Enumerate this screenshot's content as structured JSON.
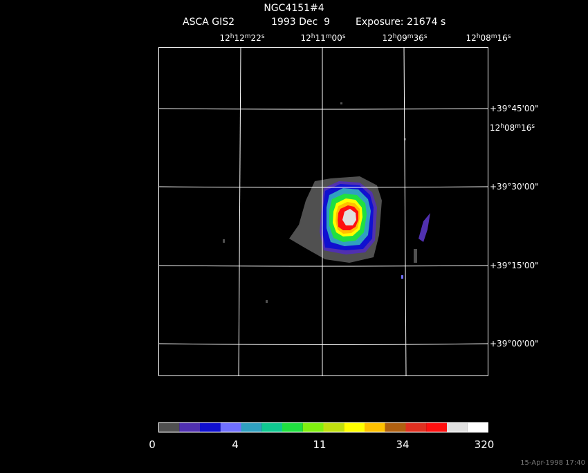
{
  "header": {
    "object": "NGC4151#4",
    "instrument": "ASCA GIS2",
    "date": "1993 Dec  9",
    "exposure": "Exposure: 21674 s"
  },
  "ra_units": [
    "h",
    "m",
    "s"
  ],
  "ra_labels": [
    {
      "h": "12",
      "m": "12",
      "s": "22"
    },
    {
      "h": "12",
      "m": "11",
      "s": "00"
    },
    {
      "h": "12",
      "m": "09",
      "s": "36"
    },
    {
      "h": "12",
      "m": "08",
      "s": "16"
    }
  ],
  "ra_side_label": {
    "h": "12",
    "m": "08",
    "s": "16"
  },
  "dec_labels": [
    "+39°45'00\"",
    "+39°30'00\"",
    "+39°15'00\"",
    "+39°00'00\""
  ],
  "colorbar": {
    "colors": [
      "#505050",
      "#5030b0",
      "#1010d0",
      "#7070ff",
      "#30a0c0",
      "#10c890",
      "#20e040",
      "#80f010",
      "#c0e010",
      "#ffff00",
      "#ffc000",
      "#b06010",
      "#e03020",
      "#ff1010",
      "#e0e0e0",
      "#ffffff"
    ],
    "labels": [
      0,
      4,
      11,
      34,
      320
    ]
  },
  "timestamp": "15-Apr-1998 17:40"
}
